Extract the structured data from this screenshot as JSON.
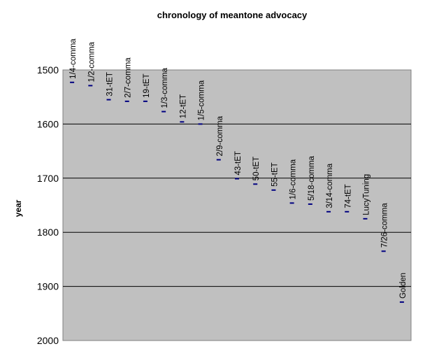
{
  "chart_data": {
    "type": "scatter",
    "title": "chronology of meantone advocacy",
    "xlabel": "",
    "ylabel": "year",
    "ylim": [
      1500,
      2000
    ],
    "y_reversed": true,
    "y_ticks": [
      1500,
      1600,
      1700,
      1800,
      1900,
      2000
    ],
    "grid": true,
    "legend": "none",
    "marker_color": "#000080",
    "plot_bg": "#c0c0c0",
    "categories": [
      "1/4-comma",
      "1/2-comma",
      "31-tET",
      "2/7-comma",
      "19-tET",
      "1/3-comma",
      "12-tET",
      "1/5-comma",
      "2/9-comma",
      "43-tET",
      "50-tET",
      "55-tET",
      "1/6-comma",
      "5/18-comma",
      "3/14-comma",
      "74-tET",
      "LucyTuning",
      "7/26-comma",
      "Golden"
    ],
    "values": [
      1523,
      1529,
      1555,
      1558,
      1558,
      1577,
      1596,
      1600,
      1666,
      1701,
      1711,
      1722,
      1746,
      1748,
      1762,
      1762,
      1775,
      1835,
      1929
    ]
  }
}
